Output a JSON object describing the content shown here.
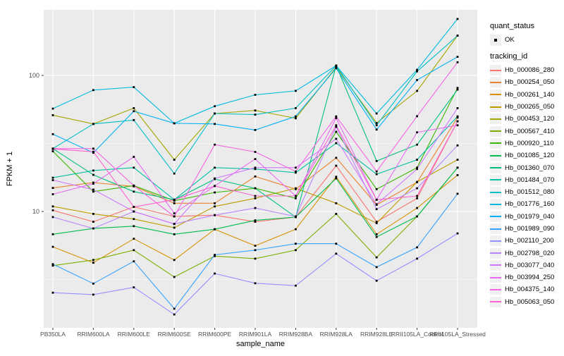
{
  "chart_data": {
    "type": "line",
    "title": "",
    "xlabel": "sample_name",
    "ylabel": "FPKM + 1",
    "y_scale": "log10",
    "y_major_ticks": [
      10,
      100
    ],
    "y_minor_gridlines": [
      3.162,
      31.62
    ],
    "ylim": [
      1.4,
      310
    ],
    "grid": true,
    "legend_position": "right",
    "marker": "small-black-square",
    "x": [
      "PB350LA",
      "RRIM600LA",
      "RRIM600LE",
      "RRIM600SE",
      "RRIM600PE",
      "RRIM901LA",
      "RRIM928BA",
      "RRIM928LA",
      "RRIM928LE",
      "RRII105LA_Control",
      "RRII105LA_Stressed"
    ],
    "quant_legend": {
      "title": "quant_status",
      "items": [
        "OK"
      ]
    },
    "series_legend_title": "tracking_id",
    "series": [
      {
        "name": "Hb_000086_280",
        "color": "#F8766D",
        "values": [
          10.2,
          8.4,
          10.8,
          9.2,
          9.4,
          8.4,
          9.1,
          21.7,
          8.4,
          12.5,
          46
        ]
      },
      {
        "name": "Hb_000254_050",
        "color": "#EA8331",
        "values": [
          14.9,
          16.3,
          15.3,
          11.5,
          11.5,
          18.1,
          14.6,
          24.8,
          11.2,
          16.4,
          49
        ]
      },
      {
        "name": "Hb_000261_140",
        "color": "#D89000",
        "values": [
          5.5,
          4.2,
          6.3,
          4.4,
          7.4,
          5.6,
          7.4,
          18.0,
          6.8,
          10.6,
          18.5
        ]
      },
      {
        "name": "Hb_000265_050",
        "color": "#C09B00",
        "values": [
          10.9,
          9.6,
          8.8,
          7.6,
          10.9,
          12.5,
          14.8,
          11.5,
          8.2,
          16.5,
          24.0
        ]
      },
      {
        "name": "Hb_000453_120",
        "color": "#A3A500",
        "values": [
          51,
          44,
          57.5,
          24,
          52.5,
          55.3,
          48.4,
          115,
          44.7,
          77,
          196
        ]
      },
      {
        "name": "Hb_000567_410",
        "color": "#7CAE00",
        "values": [
          4.0,
          4.4,
          5.2,
          3.3,
          4.7,
          4.5,
          5.2,
          9.6,
          4.6,
          9.2,
          21
        ]
      },
      {
        "name": "Hb_000920_110",
        "color": "#39B600",
        "values": [
          27.7,
          14.0,
          15.5,
          12.0,
          13.8,
          14.8,
          12.5,
          38.5,
          14.6,
          21.0,
          81
        ]
      },
      {
        "name": "Hb_001085_120",
        "color": "#00BB4E",
        "values": [
          6.8,
          7.5,
          7.8,
          6.8,
          7.4,
          8.6,
          9.1,
          17.5,
          6.5,
          9.2,
          21
        ]
      },
      {
        "name": "Hb_001360_070",
        "color": "#00BF7D",
        "values": [
          29,
          18.6,
          14.0,
          12.2,
          17.3,
          14.8,
          9.1,
          118,
          23.5,
          31,
          78.7
        ]
      },
      {
        "name": "Hb_001484_070",
        "color": "#00C1A3",
        "values": [
          17.7,
          20,
          21,
          12.2,
          21,
          20.5,
          19.3,
          31.8,
          18.8,
          24,
          50
        ]
      },
      {
        "name": "Hb_001512_080",
        "color": "#00BFC4",
        "values": [
          29,
          44,
          47,
          19,
          52.5,
          51.5,
          57.5,
          118,
          43,
          107,
          196
        ]
      },
      {
        "name": "Hb_001776_160",
        "color": "#00BAE0",
        "values": [
          57,
          78,
          82,
          44.5,
          59.4,
          72,
          77,
          118,
          52.5,
          110,
          260
        ]
      },
      {
        "name": "Hb_001979_040",
        "color": "#00B0F6",
        "values": [
          37,
          27,
          54.6,
          44.5,
          44,
          39.7,
          50,
          113,
          40,
          92.5,
          137
        ]
      },
      {
        "name": "Hb_001989_090",
        "color": "#35A2FF",
        "values": [
          4.1,
          2.95,
          4.3,
          1.93,
          4.8,
          5.2,
          5.8,
          5.8,
          3.9,
          5.45,
          13.5
        ]
      },
      {
        "name": "Hb_002110_200",
        "color": "#9590FF",
        "values": [
          2.53,
          2.45,
          2.77,
          1.75,
          3.5,
          2.97,
          2.85,
          4.9,
          3.1,
          4.5,
          6.9
        ]
      },
      {
        "name": "Hb_002798_020",
        "color": "#B983FF",
        "values": [
          9.1,
          7.5,
          10.0,
          8.1,
          9.4,
          10.6,
          9.2,
          41.9,
          10.4,
          14.8,
          30.6
        ]
      },
      {
        "name": "Hb_003077_040",
        "color": "#D376FE",
        "values": [
          17.0,
          14.5,
          10.0,
          8.1,
          17.5,
          21.0,
          21.0,
          34.2,
          11.3,
          20.5,
          57.5
        ]
      },
      {
        "name": "Hb_003994_250",
        "color": "#E76BF3",
        "values": [
          13.4,
          16.0,
          25.2,
          9.7,
          15.4,
          24.3,
          13.0,
          48.6,
          12.2,
          38.2,
          43
        ]
      },
      {
        "name": "Hb_004375_140",
        "color": "#F564E3",
        "values": [
          29.0,
          29.0,
          15.5,
          9.2,
          31.0,
          27.4,
          19.7,
          50,
          19.7,
          50.2,
          125
        ]
      },
      {
        "name": "Hb_005063_050",
        "color": "#FD61D1",
        "values": [
          28.8,
          27.5,
          10.8,
          12.2,
          15.4,
          13.0,
          13.0,
          43,
          12.2,
          13.0,
          46
        ]
      }
    ],
    "style": {
      "panel_bg": "#EBEBEB",
      "grid_color": "#FFFFFF",
      "tick_text_color": "#4D4D4D",
      "axis_title_color": "#000000",
      "marker_color": "#000000"
    }
  }
}
